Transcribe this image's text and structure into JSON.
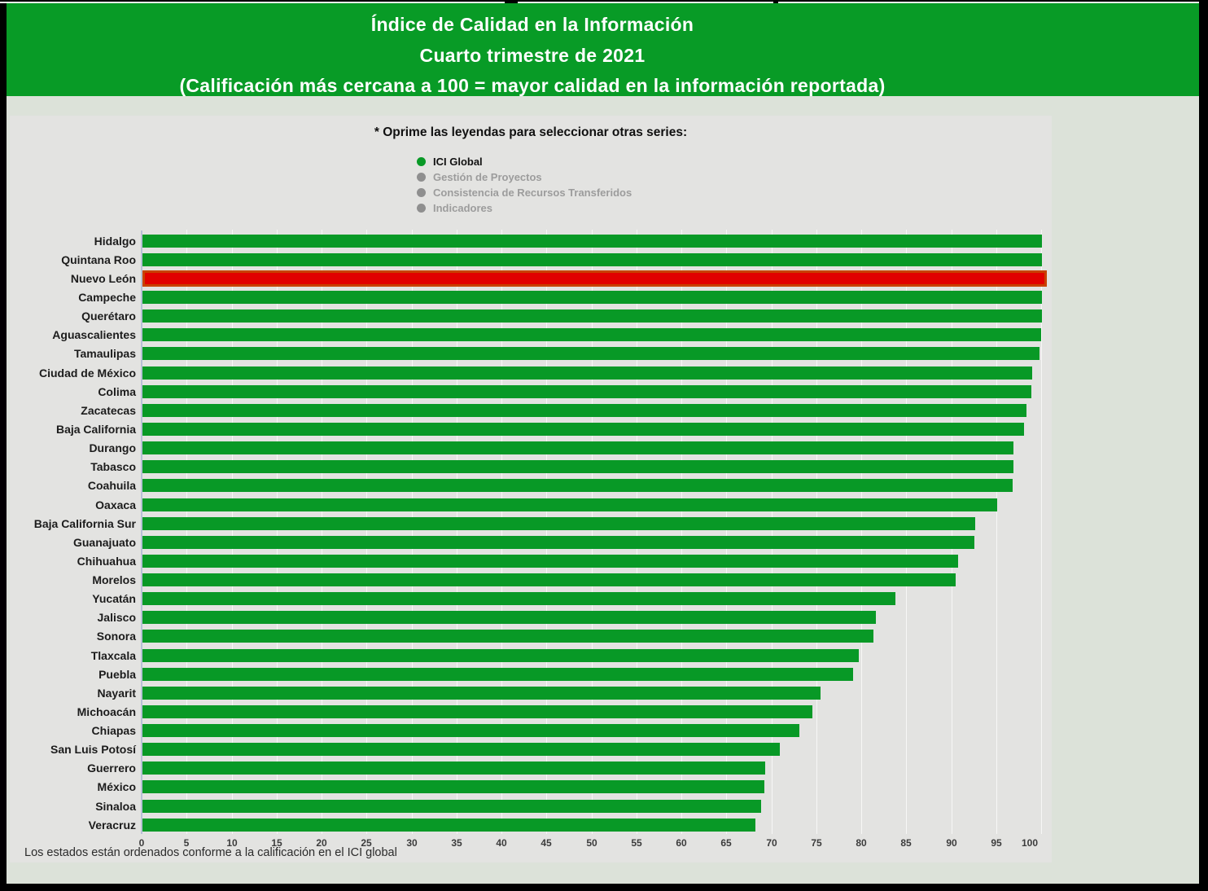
{
  "header": {
    "line1": "Índice de Calidad en la Información",
    "line2": "Cuarto trimestre de 2021",
    "line3": "(Calificación más cercana a 100 = mayor calidad en la información reportada)",
    "background": "#089B26",
    "text_color": "#FFFFFF"
  },
  "legend": {
    "instruction": "* Oprime las leyendas para seleccionar otras series:",
    "items": [
      {
        "label": "ICI Global",
        "active": true,
        "dot_color": "#089926",
        "text_color": "#111111"
      },
      {
        "label": "Gestión de Proyectos",
        "active": false,
        "dot_color": "#8F8F8F",
        "text_color": "#9C9C9C"
      },
      {
        "label": "Consistencia de Recursos Transferidos",
        "active": false,
        "dot_color": "#8F8F8F",
        "text_color": "#9C9C9C"
      },
      {
        "label": "Indicadores",
        "active": false,
        "dot_color": "#8F8F8F",
        "text_color": "#9C9C9C"
      }
    ]
  },
  "chart_data": {
    "type": "bar",
    "orientation": "horizontal",
    "title": "Índice de Calidad en la Información",
    "subtitle": "Cuarto trimestre de 2021",
    "series_name": "ICI Global",
    "categories": [
      "Hidalgo",
      "Quintana Roo",
      "Nuevo León",
      "Campeche",
      "Querétaro",
      "Aguascalientes",
      "Tamaulipas",
      "Ciudad de México",
      "Colima",
      "Zacatecas",
      "Baja California",
      "Durango",
      "Tabasco",
      "Coahuila",
      "Oaxaca",
      "Baja California Sur",
      "Guanajuato",
      "Chihuahua",
      "Morelos",
      "Yucatán",
      "Jalisco",
      "Sonora",
      "Tlaxcala",
      "Puebla",
      "Nayarit",
      "Michoacán",
      "Chiapas",
      "San Luis Potosí",
      "Guerrero",
      "México",
      "Sinaloa",
      "Veracruz"
    ],
    "values": [
      100,
      100,
      100,
      100,
      100,
      99.9,
      99.7,
      98.9,
      98.8,
      98.3,
      98.0,
      96.8,
      96.8,
      96.7,
      95.0,
      92.6,
      92.5,
      90.7,
      90.4,
      83.7,
      81.5,
      81.3,
      79.6,
      79.0,
      75.4,
      74.5,
      73.0,
      70.9,
      69.2,
      69.1,
      68.8,
      68.1
    ],
    "highlight_category": "Nuevo León",
    "bar_color": "#089926",
    "highlight_fill": "#E10000",
    "highlight_border": "#C84100",
    "xlim": [
      0,
      100
    ],
    "xticks": [
      0,
      5,
      10,
      15,
      20,
      25,
      30,
      35,
      40,
      45,
      50,
      55,
      60,
      65,
      70,
      75,
      80,
      85,
      90,
      95,
      100
    ],
    "grid": "vertical-faint",
    "legend_position": "top",
    "sort_order": "descending"
  },
  "footnote": "Los estados están ordenados conforme a la calificación en el ICI global"
}
